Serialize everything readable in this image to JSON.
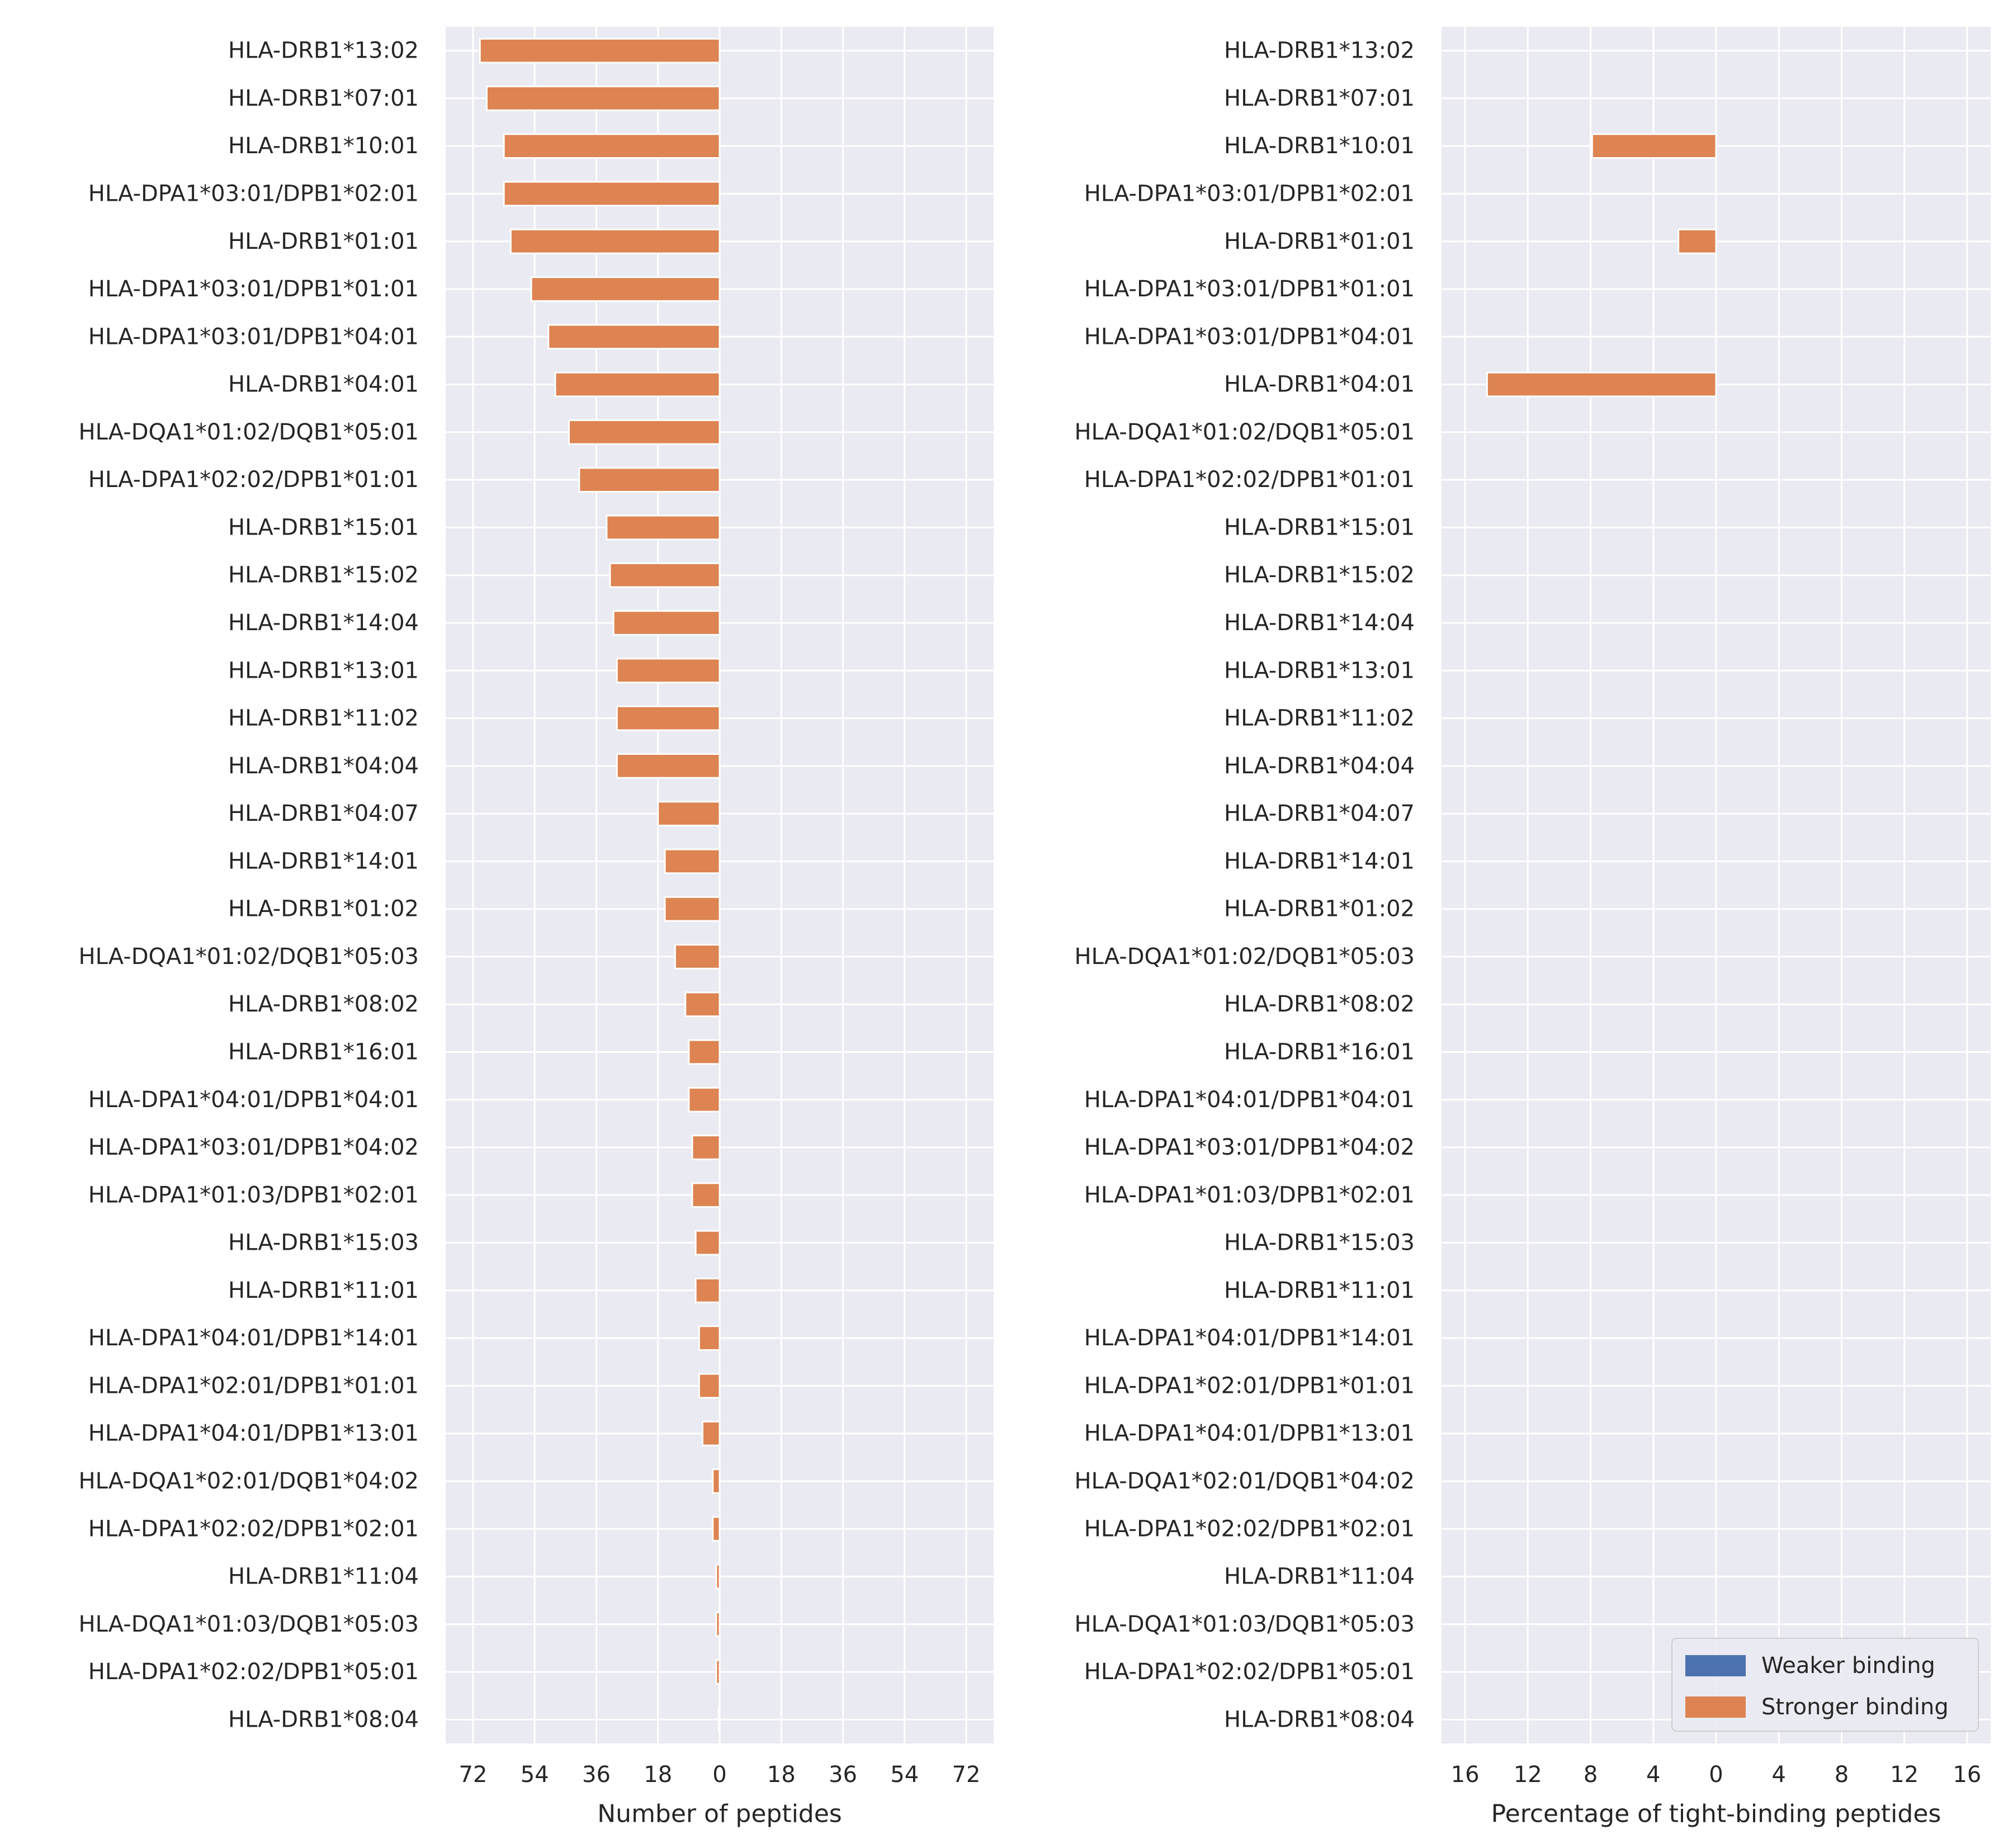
{
  "chart_data": [
    {
      "type": "bar",
      "orientation": "horizontal-diverging",
      "xlabel": "Number of peptides",
      "xlim": [
        -80,
        80
      ],
      "xticks": [
        -72,
        -54,
        -36,
        -18,
        0,
        18,
        36,
        54,
        72
      ],
      "xtick_labels": [
        "72",
        "54",
        "36",
        "18",
        "0",
        "18",
        "36",
        "54",
        "72"
      ],
      "grid": true,
      "categories": [
        "HLA-DRB1*13:02",
        "HLA-DRB1*07:01",
        "HLA-DRB1*10:01",
        "HLA-DPA1*03:01/DPB1*02:01",
        "HLA-DRB1*01:01",
        "HLA-DPA1*03:01/DPB1*01:01",
        "HLA-DPA1*03:01/DPB1*04:01",
        "HLA-DRB1*04:01",
        "HLA-DQA1*01:02/DQB1*05:01",
        "HLA-DPA1*02:02/DPB1*01:01",
        "HLA-DRB1*15:01",
        "HLA-DRB1*15:02",
        "HLA-DRB1*14:04",
        "HLA-DRB1*13:01",
        "HLA-DRB1*11:02",
        "HLA-DRB1*04:04",
        "HLA-DRB1*04:07",
        "HLA-DRB1*14:01",
        "HLA-DRB1*01:02",
        "HLA-DQA1*01:02/DQB1*05:03",
        "HLA-DRB1*08:02",
        "HLA-DRB1*16:01",
        "HLA-DPA1*04:01/DPB1*04:01",
        "HLA-DPA1*03:01/DPB1*04:02",
        "HLA-DPA1*01:03/DPB1*02:01",
        "HLA-DRB1*15:03",
        "HLA-DRB1*11:01",
        "HLA-DPA1*04:01/DPB1*14:01",
        "HLA-DPA1*02:01/DPB1*01:01",
        "HLA-DPA1*04:01/DPB1*13:01",
        "HLA-DQA1*02:01/DQB1*04:02",
        "HLA-DPA1*02:02/DPB1*02:01",
        "HLA-DRB1*11:04",
        "HLA-DQA1*01:03/DQB1*05:03",
        "HLA-DPA1*02:02/DPB1*05:01",
        "HLA-DRB1*08:04"
      ],
      "series": [
        {
          "name": "Stronger binding",
          "color": "#dd8452",
          "values": [
            -70,
            -68,
            -63,
            -63,
            -61,
            -55,
            -50,
            -48,
            -44,
            -41,
            -33,
            -32,
            -31,
            -30,
            -30,
            -30,
            -18,
            -16,
            -16,
            -13,
            -10,
            -9,
            -9,
            -8,
            -8,
            -7,
            -7,
            -6,
            -6,
            -5,
            -2,
            -2,
            -1,
            -1,
            -1,
            -0.3
          ]
        }
      ]
    },
    {
      "type": "bar",
      "orientation": "horizontal-diverging",
      "xlabel": "Percentage of tight-binding peptides",
      "xlim": [
        -17.5,
        17.5
      ],
      "xticks": [
        -16,
        -12,
        -8,
        -4,
        0,
        4,
        8,
        12,
        16
      ],
      "xtick_labels": [
        "16",
        "12",
        "8",
        "4",
        "0",
        "4",
        "8",
        "12",
        "16"
      ],
      "grid": true,
      "legend": {
        "placement": "lower-right",
        "entries": [
          "Weaker binding",
          "Stronger binding"
        ]
      },
      "categories": [
        "HLA-DRB1*13:02",
        "HLA-DRB1*07:01",
        "HLA-DRB1*10:01",
        "HLA-DPA1*03:01/DPB1*02:01",
        "HLA-DRB1*01:01",
        "HLA-DPA1*03:01/DPB1*01:01",
        "HLA-DPA1*03:01/DPB1*04:01",
        "HLA-DRB1*04:01",
        "HLA-DQA1*01:02/DQB1*05:01",
        "HLA-DPA1*02:02/DPB1*01:01",
        "HLA-DRB1*15:01",
        "HLA-DRB1*15:02",
        "HLA-DRB1*14:04",
        "HLA-DRB1*13:01",
        "HLA-DRB1*11:02",
        "HLA-DRB1*04:04",
        "HLA-DRB1*04:07",
        "HLA-DRB1*14:01",
        "HLA-DRB1*01:02",
        "HLA-DQA1*01:02/DQB1*05:03",
        "HLA-DRB1*08:02",
        "HLA-DRB1*16:01",
        "HLA-DPA1*04:01/DPB1*04:01",
        "HLA-DPA1*03:01/DPB1*04:02",
        "HLA-DPA1*01:03/DPB1*02:01",
        "HLA-DRB1*15:03",
        "HLA-DRB1*11:01",
        "HLA-DPA1*04:01/DPB1*14:01",
        "HLA-DPA1*02:01/DPB1*01:01",
        "HLA-DPA1*04:01/DPB1*13:01",
        "HLA-DQA1*02:01/DQB1*04:02",
        "HLA-DPA1*02:02/DPB1*02:01",
        "HLA-DRB1*11:04",
        "HLA-DQA1*01:03/DQB1*05:03",
        "HLA-DPA1*02:02/DPB1*05:01",
        "HLA-DRB1*08:04"
      ],
      "series": [
        {
          "name": "Weaker binding",
          "color": "#4c72b0",
          "values": [
            0,
            0,
            0,
            0,
            0,
            0,
            0,
            0,
            0,
            0,
            0,
            0,
            0,
            0,
            0,
            0,
            0,
            0,
            0,
            0,
            0,
            0,
            0,
            0,
            0,
            0,
            0,
            0,
            0,
            0,
            0,
            0,
            0,
            0,
            0,
            0
          ]
        },
        {
          "name": "Stronger binding",
          "color": "#dd8452",
          "values": [
            0,
            0,
            -7.9,
            0,
            -2.4,
            0,
            0,
            -14.6,
            0,
            0,
            0,
            0,
            0,
            0,
            0,
            0,
            0,
            0,
            0,
            0,
            0,
            0,
            0,
            0,
            0,
            0,
            0,
            0,
            0,
            0,
            0,
            0,
            0,
            0,
            0,
            0
          ]
        }
      ]
    }
  ]
}
